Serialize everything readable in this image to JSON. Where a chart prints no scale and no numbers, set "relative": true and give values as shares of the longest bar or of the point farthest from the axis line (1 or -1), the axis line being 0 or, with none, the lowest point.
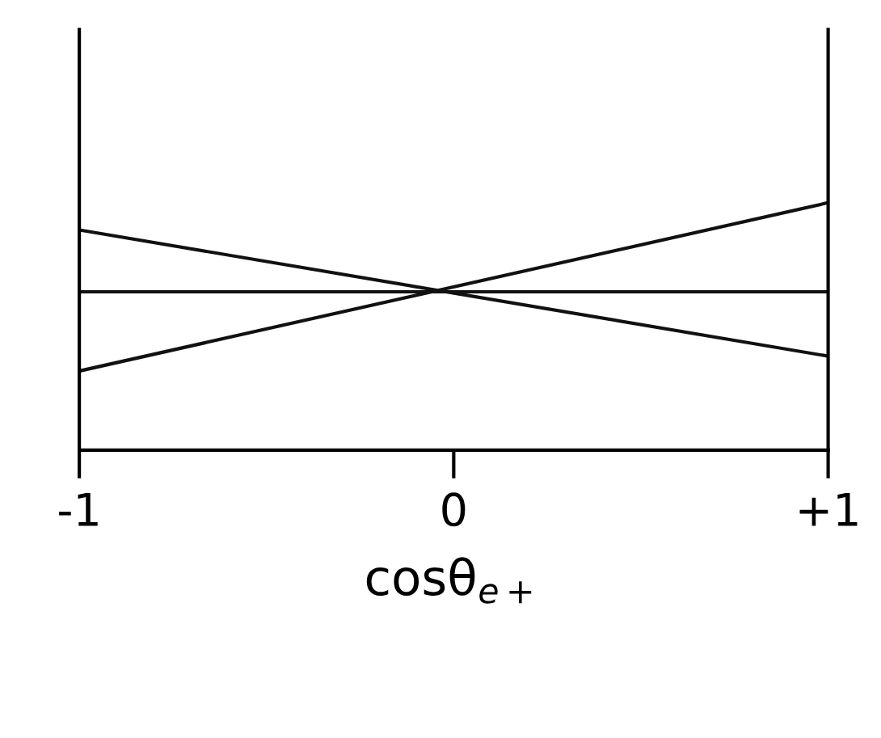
{
  "chart_data": {
    "type": "line",
    "relative": true,
    "xlabel": "cosθ$_{e+}$",
    "x": [
      -1,
      1
    ],
    "xlim": [
      -1,
      1
    ],
    "xticks": [
      {
        "value": -1,
        "label": "-1"
      },
      0,
      {
        "value": 1,
        "label": "+1"
      }
    ],
    "series": [
      {
        "color": "#111111",
        "values": [
          0.32,
          1.0
        ]
      },
      {
        "color": "#111111",
        "values": [
          0.64,
          0.64
        ]
      },
      {
        "color": "#111111",
        "values": [
          0.89,
          0.38
        ]
      }
    ],
    "line_style": "solid",
    "marker": "none",
    "grid": false,
    "legend": false
  }
}
